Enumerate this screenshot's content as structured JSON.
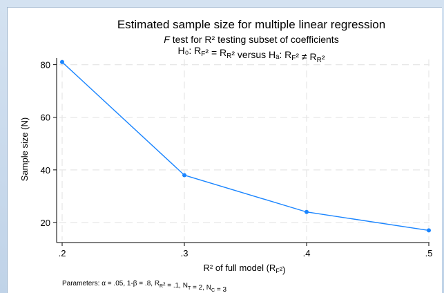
{
  "chart_data": {
    "type": "line",
    "title": "Estimated sample size for multiple linear regression",
    "subtitle_lines": {
      "line1": {
        "italic": "F",
        "rest": " test for R² testing subset of coefficients"
      },
      "line2": "H₀: R_F² = R_R²  versus  Hₐ: R_F² ≠ R_R²"
    },
    "xlabel": "R² of full model (R_F²)",
    "ylabel": "Sample size (N)",
    "x_ticks": [
      ".2",
      ".3",
      ".4",
      ".5"
    ],
    "y_ticks": [
      "20",
      "40",
      "60",
      "80"
    ],
    "x": [
      0.2,
      0.3,
      0.4,
      0.5
    ],
    "y": [
      81,
      38,
      24,
      17
    ],
    "xlim": [
      0.2,
      0.5
    ],
    "ylim": [
      15,
      82
    ],
    "grid": true,
    "series_color": "#1a85ff",
    "note": "Parameters: α = .05, 1-β = .8, R_R² = .1, N_T = 2, N_C = 3"
  }
}
